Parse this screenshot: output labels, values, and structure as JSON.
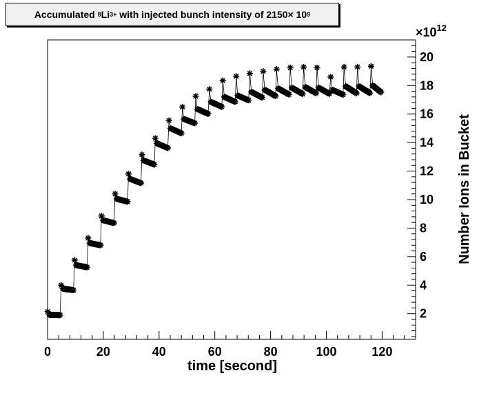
{
  "title": {
    "prefix": "Accumulated ",
    "isotope_mass": "8",
    "element": "Li",
    "charge": "3+",
    "middle": " with injected bunch intensity of 2150",
    "times": " × 10",
    "exponent": "9"
  },
  "chart_data": {
    "type": "scatter",
    "title": "Accumulated 8Li3+ with injected bunch intensity of 2150 × 10^9",
    "xlabel": "time [second]",
    "ylabel": "Number Ions in Bucket",
    "y_multiplier_label": "×10",
    "y_multiplier_exponent": "12",
    "xlim": [
      0,
      132
    ],
    "ylim": [
      0.2,
      21.2
    ],
    "x_ticks": [
      0,
      20,
      40,
      60,
      80,
      100,
      120
    ],
    "y_ticks": [
      2,
      4,
      6,
      8,
      10,
      12,
      14,
      16,
      18,
      20
    ],
    "injection_period_s": 4.83,
    "injections": [
      {
        "t": 0.0,
        "peak": 2.15,
        "start": 1.92,
        "end": 1.9
      },
      {
        "t": 4.83,
        "peak": 4.0,
        "start": 3.75,
        "end": 3.65
      },
      {
        "t": 9.66,
        "peak": 5.75,
        "start": 5.4,
        "end": 5.25
      },
      {
        "t": 14.5,
        "peak": 7.3,
        "start": 6.95,
        "end": 6.8
      },
      {
        "t": 19.3,
        "peak": 8.85,
        "start": 8.55,
        "end": 8.35
      },
      {
        "t": 24.2,
        "peak": 10.4,
        "start": 10.05,
        "end": 9.85
      },
      {
        "t": 29.0,
        "peak": 11.8,
        "start": 11.45,
        "end": 11.15
      },
      {
        "t": 33.8,
        "peak": 13.15,
        "start": 12.75,
        "end": 12.45
      },
      {
        "t": 38.6,
        "peak": 14.3,
        "start": 13.95,
        "end": 13.6
      },
      {
        "t": 43.5,
        "peak": 15.55,
        "start": 15.0,
        "end": 14.65
      },
      {
        "t": 48.3,
        "peak": 16.5,
        "start": 15.65,
        "end": 15.35
      },
      {
        "t": 53.1,
        "peak": 17.25,
        "start": 16.35,
        "end": 16.0
      },
      {
        "t": 58.0,
        "peak": 17.75,
        "start": 16.85,
        "end": 16.5
      },
      {
        "t": 62.8,
        "peak": 18.35,
        "start": 17.2,
        "end": 16.85
      },
      {
        "t": 67.6,
        "peak": 18.65,
        "start": 17.3,
        "end": 16.95
      },
      {
        "t": 72.5,
        "peak": 18.85,
        "start": 17.55,
        "end": 17.15
      },
      {
        "t": 77.3,
        "peak": 19.0,
        "start": 17.7,
        "end": 17.25
      },
      {
        "t": 82.1,
        "peak": 19.15,
        "start": 17.8,
        "end": 17.35
      },
      {
        "t": 87.0,
        "peak": 19.25,
        "start": 17.85,
        "end": 17.4
      },
      {
        "t": 91.8,
        "peak": 19.3,
        "start": 17.9,
        "end": 17.45
      },
      {
        "t": 96.6,
        "peak": 19.25,
        "start": 17.85,
        "end": 17.4
      },
      {
        "t": 101.5,
        "peak": 18.6,
        "start": 17.7,
        "end": 17.35
      },
      {
        "t": 106.3,
        "peak": 19.3,
        "start": 17.95,
        "end": 17.45
      },
      {
        "t": 111.1,
        "peak": 19.3,
        "start": 17.95,
        "end": 17.45
      },
      {
        "t": 116.0,
        "peak": 19.35,
        "start": 18.0,
        "end": 17.5
      }
    ],
    "last_time": 120.0,
    "grid": false,
    "legend": "none"
  }
}
